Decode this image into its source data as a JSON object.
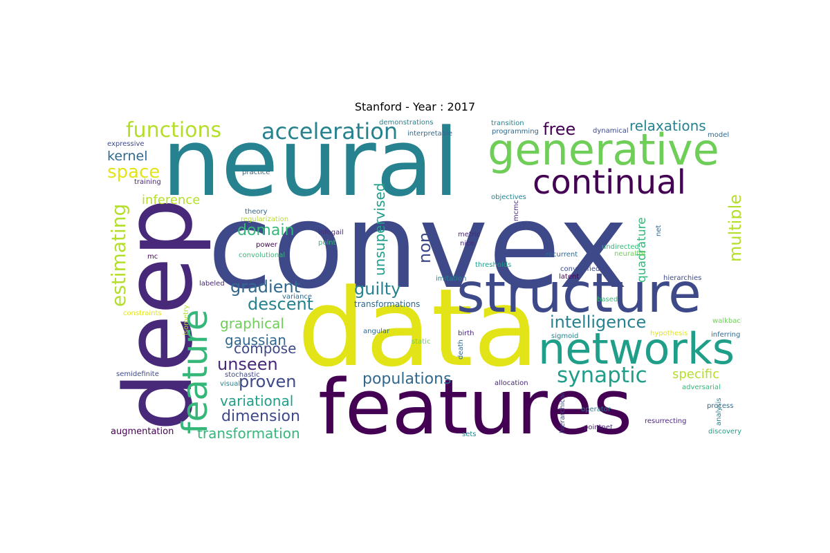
{
  "title": "Stanford - Year : 2017",
  "colors": {
    "purple_dark": "#440154",
    "purple": "#482878",
    "indigo": "#3e4989",
    "blue": "#31688e",
    "teal_blue": "#26828e",
    "teal": "#1f9e89",
    "green_teal": "#35b779",
    "green": "#6ece58",
    "lime": "#b5de2b",
    "yellow": "#e2e418"
  },
  "words": [
    {
      "text": "convex",
      "color": "#3e4989"
    },
    {
      "text": "data",
      "color": "#e2e418"
    },
    {
      "text": "neural",
      "color": "#26828e"
    },
    {
      "text": "deep",
      "color": "#482878"
    },
    {
      "text": "features",
      "color": "#440154"
    },
    {
      "text": "structure",
      "color": "#3e4989"
    },
    {
      "text": "generative",
      "color": "#6ece58"
    },
    {
      "text": "networks",
      "color": "#1f9e89"
    },
    {
      "text": "feature",
      "color": "#35b779"
    },
    {
      "text": "continual",
      "color": "#440154"
    },
    {
      "text": "acceleration",
      "color": "#26828e"
    },
    {
      "text": "functions",
      "color": "#b5de2b"
    },
    {
      "text": "synaptic",
      "color": "#1f9e89"
    },
    {
      "text": "estimating",
      "color": "#b5de2b"
    },
    {
      "text": "intelligence",
      "color": "#26828e"
    },
    {
      "text": "unsupervised",
      "color": "#1f9e89"
    },
    {
      "text": "populations",
      "color": "#31688e"
    },
    {
      "text": "dimension",
      "color": "#3e4989"
    },
    {
      "text": "space",
      "color": "#e2e418"
    },
    {
      "text": "multiple",
      "color": "#b5de2b"
    },
    {
      "text": "gradient",
      "color": "#31688e"
    },
    {
      "text": "descent",
      "color": "#26828e"
    },
    {
      "text": "guilty",
      "color": "#26828e"
    },
    {
      "text": "unseen",
      "color": "#482878"
    },
    {
      "text": "proven",
      "color": "#3e4989"
    },
    {
      "text": "free",
      "color": "#440154"
    },
    {
      "text": "relaxations",
      "color": "#26828e"
    },
    {
      "text": "quadrature",
      "color": "#35b779"
    },
    {
      "text": "non",
      "color": "#3e4989"
    },
    {
      "text": "domain",
      "color": "#35b779"
    },
    {
      "text": "kernel",
      "color": "#31688e"
    },
    {
      "text": "inference",
      "color": "#b5de2b"
    },
    {
      "text": "transformation",
      "color": "#35b779"
    },
    {
      "text": "variational",
      "color": "#1f9e89"
    },
    {
      "text": "graphical",
      "color": "#6ece58"
    },
    {
      "text": "gaussian",
      "color": "#31688e"
    },
    {
      "text": "compose",
      "color": "#3e4989"
    },
    {
      "text": "specific",
      "color": "#b5de2b"
    },
    {
      "text": "augmentation",
      "color": "#440154"
    },
    {
      "text": "transformations",
      "color": "#31688e"
    },
    {
      "text": "expressive",
      "color": "#3e4989"
    },
    {
      "text": "training",
      "color": "#482878"
    },
    {
      "text": "practice",
      "color": "#31688e"
    },
    {
      "text": "theory",
      "color": "#31688e"
    },
    {
      "text": "regularization",
      "color": "#b5de2b"
    },
    {
      "text": "infogail",
      "color": "#482878"
    },
    {
      "text": "point",
      "color": "#35b779"
    },
    {
      "text": "power",
      "color": "#440154"
    },
    {
      "text": "convolutional",
      "color": "#35b779"
    },
    {
      "text": "mc",
      "color": "#440154"
    },
    {
      "text": "labeled",
      "color": "#482878"
    },
    {
      "text": "variance",
      "color": "#31688e"
    },
    {
      "text": "constraints",
      "color": "#e2e418"
    },
    {
      "text": "isometry",
      "color": "#b5de2b"
    },
    {
      "text": "demonstrations",
      "color": "#26828e"
    },
    {
      "text": "interpretable",
      "color": "#31688e"
    },
    {
      "text": "transition",
      "color": "#26828e"
    },
    {
      "text": "programming",
      "color": "#31688e"
    },
    {
      "text": "dynamical",
      "color": "#3e4989"
    },
    {
      "text": "model",
      "color": "#31688e"
    },
    {
      "text": "objectives",
      "color": "#26828e"
    },
    {
      "text": "mcmc",
      "color": "#482878"
    },
    {
      "text": "metric",
      "color": "#482878"
    },
    {
      "text": "nice",
      "color": "#482878"
    },
    {
      "text": "net",
      "color": "#31688e"
    },
    {
      "text": "recurrent",
      "color": "#31688e"
    },
    {
      "text": "undirected",
      "color": "#35b779"
    },
    {
      "text": "neuralfdr",
      "color": "#6ece58"
    },
    {
      "text": "thresholds",
      "color": "#1f9e89"
    },
    {
      "text": "convexified",
      "color": "#3e4989"
    },
    {
      "text": "latent",
      "color": "#440154"
    },
    {
      "text": "imitation",
      "color": "#26828e"
    },
    {
      "text": "hierarchies",
      "color": "#3e4989"
    },
    {
      "text": "based",
      "color": "#35b779"
    },
    {
      "text": "walkback",
      "color": "#6ece58"
    },
    {
      "text": "hypothesis",
      "color": "#e2e418"
    },
    {
      "text": "inferring",
      "color": "#31688e"
    },
    {
      "text": "sigmoid",
      "color": "#26828e"
    },
    {
      "text": "angular",
      "color": "#31688e"
    },
    {
      "text": "static",
      "color": "#6ece58"
    },
    {
      "text": "birth",
      "color": "#482878"
    },
    {
      "text": "death",
      "color": "#31688e"
    },
    {
      "text": "allocation",
      "color": "#482878"
    },
    {
      "text": "hierarchical",
      "color": "#3e4989"
    },
    {
      "text": "adversarial",
      "color": "#35b779"
    },
    {
      "text": "process",
      "color": "#31688e"
    },
    {
      "text": "analysis",
      "color": "#26828e"
    },
    {
      "text": "semidefinite",
      "color": "#3e4989"
    },
    {
      "text": "stochastic",
      "color": "#3e4989"
    },
    {
      "text": "visual",
      "color": "#26828e"
    },
    {
      "text": "operator",
      "color": "#26828e"
    },
    {
      "text": "resurrecting",
      "color": "#482878"
    },
    {
      "text": "pointnet",
      "color": "#482878"
    },
    {
      "text": "sets",
      "color": "#26828e"
    },
    {
      "text": "discovery",
      "color": "#1f9e89"
    }
  ]
}
